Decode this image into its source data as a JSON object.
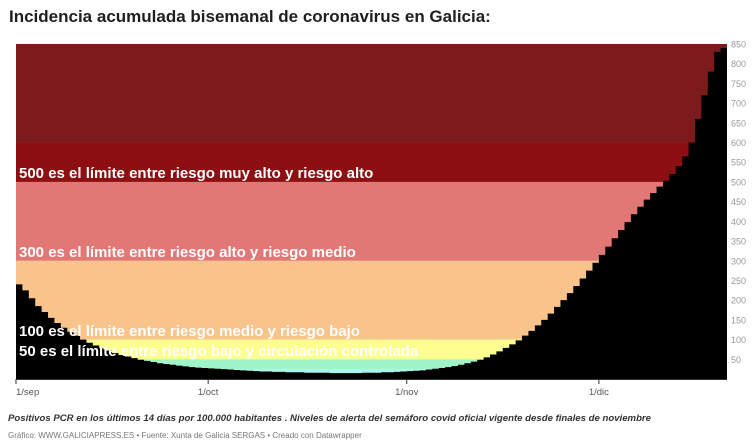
{
  "title": "Incidencia acumulada bisemanal de coronavirus en Galicia:",
  "notes": "Positivos PCR en los últimos 14 días por 100.000 habitantes . Niveles de alerta del semáforo covid oficial vigente desde finales de noviembre",
  "credit": "Gráfico: WWW.GALICIAPRESS.ES • Fuente: Xunta de Galicia SERGAS • Creado con Datawrapper",
  "chart_data": {
    "type": "area",
    "ylim": [
      0,
      850
    ],
    "y_ticks": [
      50,
      100,
      150,
      200,
      250,
      300,
      350,
      400,
      450,
      500,
      550,
      600,
      650,
      700,
      750,
      800,
      850
    ],
    "x_ticks": [
      {
        "label": "1/sep",
        "day": 1
      },
      {
        "label": "1/oct",
        "day": 31
      },
      {
        "label": "1/nov",
        "day": 62
      },
      {
        "label": "1/dic",
        "day": 92
      }
    ],
    "bands": [
      {
        "from": 0,
        "to": 25,
        "color": "#a7f5ea"
      },
      {
        "from": 25,
        "to": 50,
        "color": "#9ff5c8"
      },
      {
        "from": 50,
        "to": 100,
        "color": "#fefd8f"
      },
      {
        "from": 100,
        "to": 300,
        "color": "#f9c48c"
      },
      {
        "from": 300,
        "to": 500,
        "color": "#e17876"
      },
      {
        "from": 500,
        "to": 600,
        "color": "#8e0f12"
      },
      {
        "from": 600,
        "to": 850,
        "color": "#7d1a1c"
      }
    ],
    "thresholds": [
      {
        "value": 500,
        "label": "500 es el límite entre riesgo muy alto y riesgo alto"
      },
      {
        "value": 300,
        "label": "300 es el límite entre riesgo alto y riesgo medio"
      },
      {
        "value": 100,
        "label": "100 es el límite entre riesgo medio y riesgo bajo"
      },
      {
        "value": 50,
        "label": "50 es el límite entre riesgo bajo y circulación controlada"
      }
    ],
    "series": [
      {
        "day_start": 1,
        "values": [
          240,
          225,
          205,
          185,
          170,
          155,
          142,
          130,
          120,
          110,
          100,
          92,
          85,
          78,
          72,
          66,
          61,
          57,
          53,
          49,
          46,
          43,
          40,
          38,
          36,
          34,
          32,
          30,
          29,
          28,
          27,
          26,
          25,
          24,
          23,
          22,
          21,
          20,
          19,
          19,
          18,
          18,
          17,
          17,
          17,
          16,
          16,
          16,
          16,
          15,
          15,
          15,
          15,
          15,
          16,
          16,
          16,
          17,
          17,
          18,
          19,
          20,
          21,
          22,
          24,
          26,
          28,
          30,
          33,
          36,
          40,
          44,
          49,
          55,
          62,
          70,
          79,
          88,
          98,
          110,
          122,
          136,
          150,
          166,
          183,
          200,
          218,
          236,
          255,
          275,
          295,
          315,
          336,
          357,
          378,
          398,
          418,
          437,
          455,
          472,
          488,
          503,
          520,
          540,
          565,
          600,
          660,
          720,
          780,
          830,
          840
        ]
      }
    ]
  }
}
